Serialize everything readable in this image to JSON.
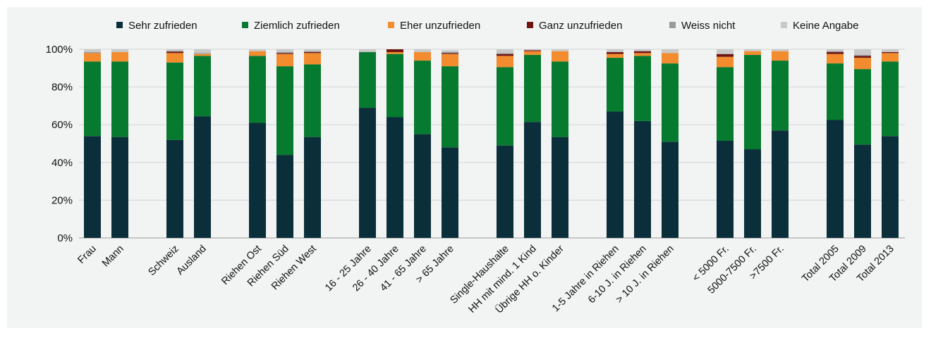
{
  "chart_data": {
    "type": "bar",
    "stacked": true,
    "title": "",
    "xlabel": "",
    "ylabel": "",
    "ylim": [
      0,
      100
    ],
    "yticks": [
      "0%",
      "20%",
      "40%",
      "60%",
      "80%",
      "100%"
    ],
    "grid": true,
    "legend_position": "top",
    "categories": [
      "Frau",
      "Mann",
      "Schweiz",
      "Ausland",
      "Riehen Ost",
      "Riehen Süd",
      "Riehen West",
      "16 - 25 Jahre",
      "26 - 40 Jahre",
      "41 - 65 Jahre",
      "> 65 Jahre",
      "Single-Haushalte",
      "HH mit mind. 1 Kind",
      "Übrige HH o. Kinder",
      "1-5 Jahre in Riehen",
      "6-10 J. in Riehen",
      "> 10 J. in Riehen",
      "< 5000 Fr.",
      "5000-7500 Fr.",
      ">7500 Fr.",
      "Total 2005",
      "Total 2009",
      "Total 2013"
    ],
    "groups": [
      2,
      2,
      3,
      4,
      3,
      3,
      3,
      3
    ],
    "series": [
      {
        "name": "Sehr zufrieden",
        "color": "#0b2f3a",
        "values": [
          54,
          53.5,
          52,
          64.5,
          61,
          44,
          53.5,
          69,
          64,
          55,
          48,
          49,
          61.5,
          53.5,
          67,
          62,
          51,
          51.5,
          47,
          57,
          62.5,
          49.5,
          54
        ]
      },
      {
        "name": "Ziemlich zufrieden",
        "color": "#067a2e",
        "values": [
          39.5,
          40,
          41,
          32,
          35.5,
          47,
          38.5,
          29.5,
          33.5,
          39,
          43,
          41.5,
          35.5,
          40,
          28.5,
          34.5,
          41.5,
          39,
          50,
          37,
          30,
          40,
          39.5
        ]
      },
      {
        "name": "Eher unzufrieden",
        "color": "#f28c2e",
        "values": [
          4.5,
          5,
          5,
          1,
          2.5,
          6.5,
          6,
          0,
          1,
          4.5,
          6.5,
          6,
          2,
          5.5,
          2,
          1.5,
          5.5,
          5.5,
          2,
          5,
          5,
          6,
          4.5
        ]
      },
      {
        "name": "Ganz unzufrieden",
        "color": "#6e1512",
        "values": [
          0,
          0,
          0.8,
          0,
          0,
          0.5,
          0.5,
          0,
          1.5,
          0,
          0.5,
          1,
          0.5,
          0,
          1,
          1,
          0,
          1.5,
          0,
          0,
          1,
          1,
          0.5
        ]
      },
      {
        "name": "Weiss nicht",
        "color": "#9a9a9a",
        "values": [
          0.5,
          0,
          0.3,
          0.5,
          0,
          0.5,
          0.5,
          0,
          0,
          0,
          0.5,
          0.5,
          0,
          0,
          0,
          0,
          0,
          0,
          0,
          0,
          0.5,
          0.5,
          0
        ]
      },
      {
        "name": "Keine Angabe",
        "color": "#c9c9c9",
        "values": [
          1.5,
          1.5,
          0.9,
          2,
          1,
          1.5,
          1,
          1.5,
          0,
          1.5,
          1,
          2,
          0.5,
          1,
          1.5,
          1,
          2,
          2.5,
          1,
          1,
          1,
          3,
          1.5
        ]
      }
    ]
  }
}
